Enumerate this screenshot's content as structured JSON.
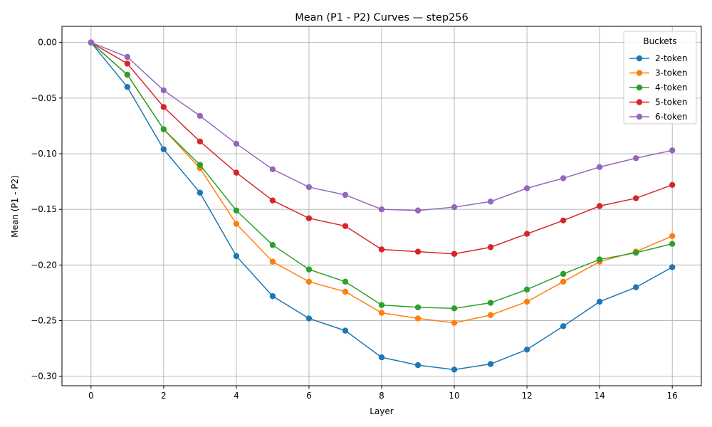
{
  "chart_data": {
    "type": "line",
    "title": "Mean (P1 - P2) Curves — step256",
    "xlabel": "Layer",
    "ylabel": "Mean (P1 - P2)",
    "xlim": [
      -0.8,
      16.8
    ],
    "ylim": [
      -0.3085,
      0.0145
    ],
    "xticks": [
      0,
      2,
      4,
      6,
      8,
      10,
      12,
      14,
      16
    ],
    "xtick_labels": [
      "0",
      "2",
      "4",
      "6",
      "8",
      "10",
      "12",
      "14",
      "16"
    ],
    "yticks": [
      0.0,
      -0.05,
      -0.1,
      -0.15,
      -0.2,
      -0.25,
      -0.3
    ],
    "ytick_labels": [
      "0.00",
      "−0.05",
      "−0.10",
      "−0.15",
      "−0.20",
      "−0.25",
      "−0.30"
    ],
    "grid": true,
    "legend": {
      "title": "Buckets",
      "position": "top-right"
    },
    "x": [
      0,
      1,
      2,
      3,
      4,
      5,
      6,
      7,
      8,
      9,
      10,
      11,
      12,
      13,
      14,
      15,
      16
    ],
    "series": [
      {
        "name": "2-token",
        "color": "#1f77b4",
        "values": [
          0.0,
          -0.04,
          -0.096,
          -0.135,
          -0.192,
          -0.228,
          -0.248,
          -0.259,
          -0.283,
          -0.29,
          -0.294,
          -0.289,
          -0.276,
          -0.255,
          -0.233,
          -0.22,
          -0.202
        ]
      },
      {
        "name": "3-token",
        "color": "#ff7f0e",
        "values": [
          0.0,
          -0.029,
          -0.078,
          -0.113,
          -0.163,
          -0.197,
          -0.215,
          -0.224,
          -0.243,
          -0.248,
          -0.252,
          -0.245,
          -0.233,
          -0.215,
          -0.197,
          -0.188,
          -0.174
        ]
      },
      {
        "name": "4-token",
        "color": "#2ca02c",
        "values": [
          0.0,
          -0.029,
          -0.078,
          -0.11,
          -0.151,
          -0.182,
          -0.204,
          -0.215,
          -0.236,
          -0.238,
          -0.239,
          -0.234,
          -0.222,
          -0.208,
          -0.195,
          -0.189,
          -0.181
        ]
      },
      {
        "name": "5-token",
        "color": "#d62728",
        "values": [
          0.0,
          -0.019,
          -0.058,
          -0.089,
          -0.117,
          -0.142,
          -0.158,
          -0.165,
          -0.186,
          -0.188,
          -0.19,
          -0.184,
          -0.172,
          -0.16,
          -0.147,
          -0.14,
          -0.128
        ]
      },
      {
        "name": "6-token",
        "color": "#9467bd",
        "values": [
          0.0,
          -0.013,
          -0.043,
          -0.066,
          -0.091,
          -0.114,
          -0.13,
          -0.137,
          -0.15,
          -0.151,
          -0.148,
          -0.143,
          -0.131,
          -0.122,
          -0.112,
          -0.104,
          -0.097
        ]
      }
    ]
  }
}
